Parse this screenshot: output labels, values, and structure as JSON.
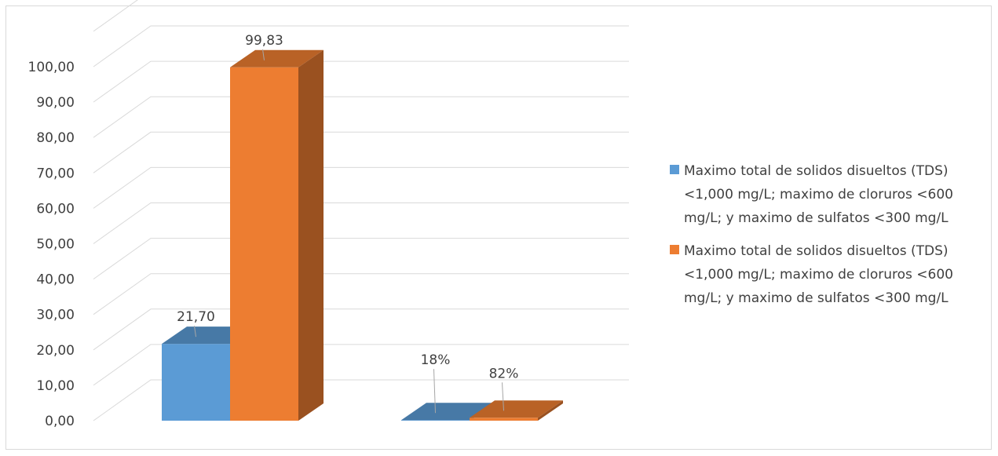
{
  "chart_data": {
    "type": "bar",
    "style": "3d-clustered-column",
    "y_ticks": [
      "0,00",
      "10,00",
      "20,00",
      "30,00",
      "40,00",
      "50,00",
      "60,00",
      "70,00",
      "80,00",
      "90,00",
      "100,00"
    ],
    "ylim": [
      0,
      110
    ],
    "grid": true,
    "legend_position": "right",
    "categories": [
      "",
      ""
    ],
    "series": [
      {
        "name": "Maximo total de solidos disueltos (TDS) <1,000 mg/L; maximo de cloruros <600 mg/L; y maximo de sulfatos <300 mg/L",
        "color": "#5b9bd5",
        "values": [
          21.7,
          0.18
        ],
        "labels": [
          "21,70",
          "18%"
        ]
      },
      {
        "name": "Maximo total de solidos disueltos (TDS) <1,000 mg/L; maximo de cloruros <600 mg/L; y maximo de sulfatos <300 mg/L",
        "color": "#ed7d31",
        "values": [
          99.83,
          0.82
        ],
        "labels": [
          "99,83",
          "82%"
        ]
      }
    ]
  }
}
